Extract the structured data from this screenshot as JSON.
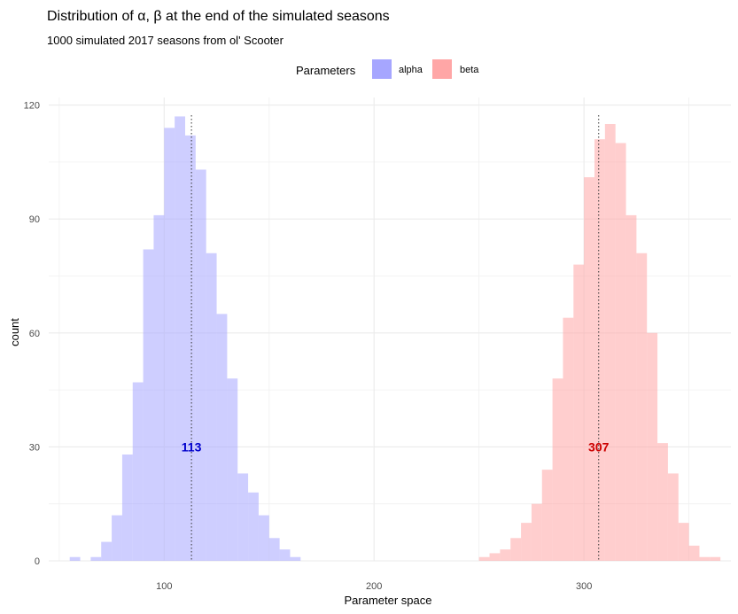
{
  "chart_data": {
    "type": "bar",
    "title": "Distribution of α, β at the end of the simulated seasons",
    "subtitle": "1000 simulated 2017 seasons from ol' Scooter",
    "xlabel": "Parameter space",
    "ylabel": "count",
    "xlim": [
      45,
      370
    ],
    "ylim": [
      0,
      122
    ],
    "x_ticks": [
      100,
      200,
      300
    ],
    "y_ticks": [
      0,
      30,
      60,
      90,
      120
    ],
    "x_tick_labels": [
      "100",
      "200",
      "300"
    ],
    "y_tick_labels": [
      "0",
      "30",
      "60",
      "90",
      "120"
    ],
    "grid": true,
    "legend": {
      "title": "Parameters",
      "position": "top"
    },
    "bin_width": 5,
    "series": [
      {
        "name": "alpha",
        "color": "#a6a6ff",
        "mean": 113,
        "mean_label": "113",
        "mean_color": "#0000cc",
        "bin_left": [
          55,
          60,
          65,
          70,
          75,
          80,
          85,
          90,
          95,
          100,
          105,
          110,
          115,
          120,
          125,
          130,
          135,
          140,
          145,
          150,
          155,
          160,
          165
        ],
        "counts": [
          1,
          0,
          1,
          5,
          12,
          28,
          47,
          82,
          91,
          114,
          117,
          112,
          103,
          81,
          65,
          48,
          23,
          18,
          12,
          6,
          3,
          1,
          0
        ]
      },
      {
        "name": "beta",
        "color": "#ffa6a6",
        "mean": 307,
        "mean_label": "307",
        "mean_color": "#cc0000",
        "bin_left": [
          250,
          255,
          260,
          265,
          270,
          275,
          280,
          285,
          290,
          295,
          300,
          305,
          310,
          315,
          320,
          325,
          330,
          335,
          340,
          345,
          350,
          355,
          360
        ],
        "counts": [
          1,
          2,
          3,
          6,
          10,
          15,
          24,
          48,
          64,
          78,
          101,
          111,
          115,
          110,
          91,
          81,
          60,
          31,
          23,
          10,
          4,
          1,
          1
        ]
      }
    ]
  }
}
